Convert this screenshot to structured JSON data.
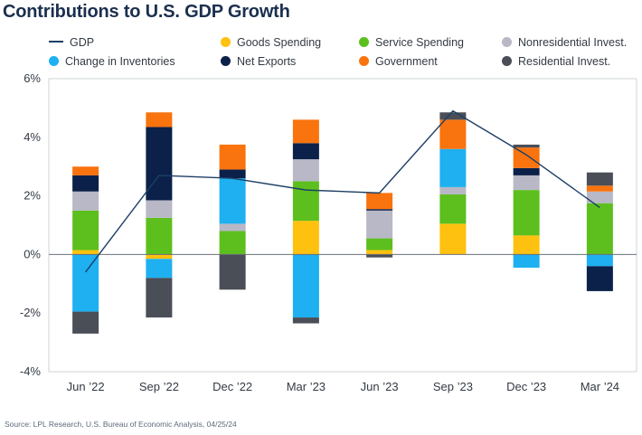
{
  "title": "Contributions to U.S. GDP Growth",
  "source": "Source: LPL Research, U.S. Bureau of Economic Analysis, 04/25/24",
  "legend": [
    {
      "label": "GDP",
      "kind": "line",
      "color": "#1d3f66"
    },
    {
      "label": "Goods Spending",
      "kind": "dot",
      "color": "#fec10f"
    },
    {
      "label": "Service Spending",
      "kind": "dot",
      "color": "#5cbf1e"
    },
    {
      "label": "Nonresidential Invest.",
      "kind": "dot",
      "color": "#b8b8c6"
    },
    {
      "label": "Change in Inventories",
      "kind": "dot",
      "color": "#1eb0f0"
    },
    {
      "label": "Net Exports",
      "kind": "dot",
      "color": "#0b2149"
    },
    {
      "label": "Government",
      "kind": "dot",
      "color": "#f9730e"
    },
    {
      "label": "Residential Invest.",
      "kind": "dot",
      "color": "#4a4e57"
    }
  ],
  "chart_data": {
    "type": "bar",
    "stacked": true,
    "categories": [
      "Jun ’22",
      "Sep ’22",
      "Dec ’22",
      "Mar ’23",
      "Jun ’23",
      "Sep ’23",
      "Dec ’23",
      "Mar ’24"
    ],
    "ylim": [
      -4,
      6
    ],
    "yticks": [
      -4,
      -2,
      0,
      2,
      4,
      6
    ],
    "ytick_labels": [
      "-4%",
      "-2%",
      "0%",
      "2%",
      "4%",
      "6%"
    ],
    "grid": false,
    "series": [
      {
        "name": "Goods Spending",
        "color": "#fec10f",
        "values": [
          0.15,
          -0.15,
          0.0,
          1.15,
          0.15,
          1.05,
          0.65,
          0.0
        ]
      },
      {
        "name": "Service Spending",
        "color": "#5cbf1e",
        "values": [
          1.35,
          1.25,
          0.8,
          1.35,
          0.4,
          1.0,
          1.55,
          1.75
        ]
      },
      {
        "name": "Nonresidential Invest.",
        "color": "#b8b8c6",
        "values": [
          0.65,
          0.6,
          0.25,
          0.75,
          0.95,
          0.25,
          0.5,
          0.4
        ]
      },
      {
        "name": "Change in Inventories",
        "color": "#1eb0f0",
        "values": [
          -1.95,
          -0.65,
          1.55,
          -2.15,
          0.0,
          1.3,
          -0.45,
          -0.4
        ]
      },
      {
        "name": "Net Exports",
        "color": "#0b2149",
        "values": [
          0.55,
          2.5,
          0.3,
          0.55,
          0.05,
          0.0,
          0.25,
          -0.85
        ]
      },
      {
        "name": "Government",
        "color": "#f9730e",
        "values": [
          0.3,
          0.5,
          0.85,
          0.8,
          0.55,
          1.0,
          0.7,
          0.2
        ]
      },
      {
        "name": "Residential Invest.",
        "color": "#4a4e57",
        "values": [
          -0.75,
          -1.35,
          -1.2,
          -0.2,
          -0.1,
          0.25,
          0.1,
          0.45
        ]
      }
    ],
    "line": {
      "name": "GDP",
      "color": "#1d3f66",
      "values": [
        -0.6,
        2.7,
        2.6,
        2.2,
        2.1,
        4.9,
        3.4,
        1.6
      ]
    }
  }
}
